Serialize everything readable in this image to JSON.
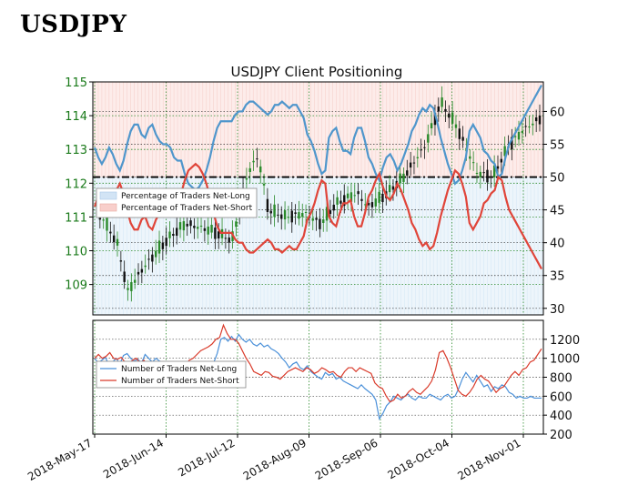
{
  "page_title": "USDJPY",
  "chart_data": [
    {
      "type": "candlestick+line",
      "title": "USDJPY Client Positioning",
      "x_tick_labels": [
        "2018-May-17",
        "2018-Jun-14",
        "2018-Jul-12",
        "2018-Aug-09",
        "2018-Sep-06",
        "2018-Oct-04",
        "2018-Nov-01"
      ],
      "left_axis": {
        "ticks": [
          "109",
          "110",
          "111",
          "112",
          "113",
          "114",
          "115"
        ],
        "range": [
          108.1,
          115
        ]
      },
      "right_axis": {
        "ticks": [
          "30",
          "35",
          "40",
          "45",
          "50",
          "55",
          "60"
        ],
        "range": [
          29,
          64.5
        ]
      },
      "reference_line": 50,
      "legend": [
        "Percentage of Traders Net-Long",
        "Percentage of Traders Net-Short"
      ],
      "net_long_pct": [
        54.5,
        53,
        52,
        53,
        54.5,
        53.5,
        52,
        51,
        52.5,
        55,
        57,
        58,
        58,
        56.5,
        56,
        57.5,
        58,
        56.5,
        55.5,
        55,
        55,
        54.5,
        53,
        52.5,
        52.5,
        50.5,
        49,
        48.5,
        48,
        48.5,
        49.5,
        51,
        53,
        55.5,
        57.5,
        58.5,
        58.5,
        58.5,
        58.5,
        59.5,
        60,
        60,
        61,
        61.5,
        61.5,
        61,
        60.5,
        60,
        59.5,
        60,
        61,
        61,
        61.5,
        61,
        60.5,
        61,
        61,
        60,
        59,
        56.5,
        55.5,
        54,
        52,
        50.5,
        51,
        56,
        57,
        57.5,
        55.5,
        54,
        54,
        53.5,
        56,
        57.5,
        57.5,
        55.5,
        53,
        52,
        50.5,
        49.5,
        51.5,
        53,
        53.5,
        52.5,
        51,
        52,
        53.5,
        55,
        57,
        58,
        59.5,
        60.5,
        60,
        61,
        60.5,
        58.5,
        56,
        54,
        52,
        50.5,
        49,
        49.5,
        51,
        53,
        57,
        58,
        57,
        56,
        54,
        53.5,
        52.5,
        52,
        50,
        50.5,
        53,
        55,
        56,
        57,
        58,
        59,
        60,
        61,
        62,
        63,
        64
      ],
      "net_short_pct": [
        45.5,
        47,
        48,
        47,
        45.5,
        46.5,
        48,
        49,
        47.5,
        45,
        43,
        42,
        42,
        43.5,
        44,
        42.5,
        42,
        43.5,
        44.5,
        45,
        45,
        45.5,
        47,
        47.5,
        47.5,
        49.5,
        51,
        51.5,
        52,
        51.5,
        50.5,
        49,
        47,
        44.5,
        42.5,
        41.5,
        41.5,
        41.5,
        41.5,
        40.5,
        40,
        40,
        39,
        38.5,
        38.5,
        39,
        39.5,
        40,
        40.5,
        40,
        39,
        39,
        38.5,
        39,
        39.5,
        39,
        39,
        40,
        41,
        43.5,
        44.5,
        46,
        48,
        49.5,
        49,
        44,
        43,
        42.5,
        44.5,
        46,
        46,
        46.5,
        44,
        42.5,
        42.5,
        44.5,
        47,
        48,
        49.5,
        50.5,
        48.5,
        47,
        46.5,
        47.5,
        49,
        48,
        46.5,
        45,
        43,
        42,
        40.5,
        39.5,
        40,
        39,
        39.5,
        41.5,
        44,
        46,
        48,
        49.5,
        51,
        50.5,
        49,
        47,
        43,
        42,
        43,
        44,
        46,
        46.5,
        47.5,
        48,
        50,
        49.5,
        47,
        45,
        44,
        43,
        42,
        41,
        40,
        39,
        38,
        37,
        36
      ]
    },
    {
      "type": "line",
      "y_ticks": [
        "200",
        "400",
        "600",
        "800",
        "1000",
        "1200"
      ],
      "y_range": [
        200,
        1400
      ],
      "legend": [
        "Number of Traders Net-Long",
        "Number of Traders Net-Short"
      ],
      "series": [
        {
          "name": "Number of Traders Net-Long",
          "color": "#4a90d9",
          "values": [
            1000,
            950,
            980,
            1010,
            920,
            960,
            1000,
            940,
            1030,
            1050,
            1000,
            970,
            990,
            950,
            1040,
            1000,
            960,
            1000,
            970,
            950,
            960,
            900,
            880,
            920,
            870,
            860,
            840,
            820,
            800,
            830,
            850,
            870,
            900,
            950,
            1050,
            1200,
            1220,
            1180,
            1230,
            1180,
            1250,
            1200,
            1170,
            1200,
            1150,
            1130,
            1160,
            1120,
            1140,
            1100,
            1080,
            1050,
            1000,
            960,
            900,
            940,
            960,
            900,
            880,
            920,
            860,
            830,
            800,
            780,
            850,
            820,
            840,
            780,
            800,
            760,
            740,
            720,
            700,
            680,
            720,
            680,
            650,
            620,
            560,
            360,
            420,
            500,
            540,
            600,
            580,
            560,
            600,
            620,
            580,
            560,
            600,
            580,
            580,
            620,
            600,
            580,
            560,
            600,
            620,
            580,
            600,
            680,
            780,
            850,
            800,
            750,
            820,
            760,
            700,
            720,
            650,
            700,
            680,
            720,
            700,
            640,
            620,
            580,
            600,
            580,
            580,
            600,
            580,
            580,
            580
          ],
          "name_hidden": ""
        },
        {
          "name": "Number of Traders Net-Short",
          "color": "#d93a2a",
          "values": [
            1000,
            1040,
            1000,
            1020,
            1060,
            1000,
            990,
            1010,
            960,
            940,
            980,
            1000,
            950,
            980,
            920,
            880,
            900,
            860,
            870,
            900,
            880,
            920,
            950,
            900,
            930,
            980,
            1000,
            1040,
            1080,
            1100,
            1120,
            1150,
            1200,
            1220,
            1350,
            1260,
            1200,
            1200,
            1160,
            1080,
            1000,
            940,
            860,
            840,
            820,
            860,
            850,
            810,
            800,
            780,
            820,
            860,
            880,
            900,
            880,
            860,
            900,
            880,
            840,
            860,
            900,
            880,
            850,
            860,
            820,
            800,
            860,
            900,
            900,
            860,
            900,
            880,
            860,
            840,
            740,
            700,
            680,
            600,
            540,
            560,
            620,
            580,
            600,
            650,
            680,
            640,
            620,
            660,
            700,
            760,
            880,
            1060,
            1080,
            1000,
            900,
            780,
            660,
            620,
            600,
            640,
            700,
            780,
            820,
            780,
            760,
            700,
            640,
            680,
            700,
            760,
            820,
            860,
            820,
            880,
            900,
            960,
            980,
            1040,
            1100
          ]
        }
      ]
    }
  ]
}
